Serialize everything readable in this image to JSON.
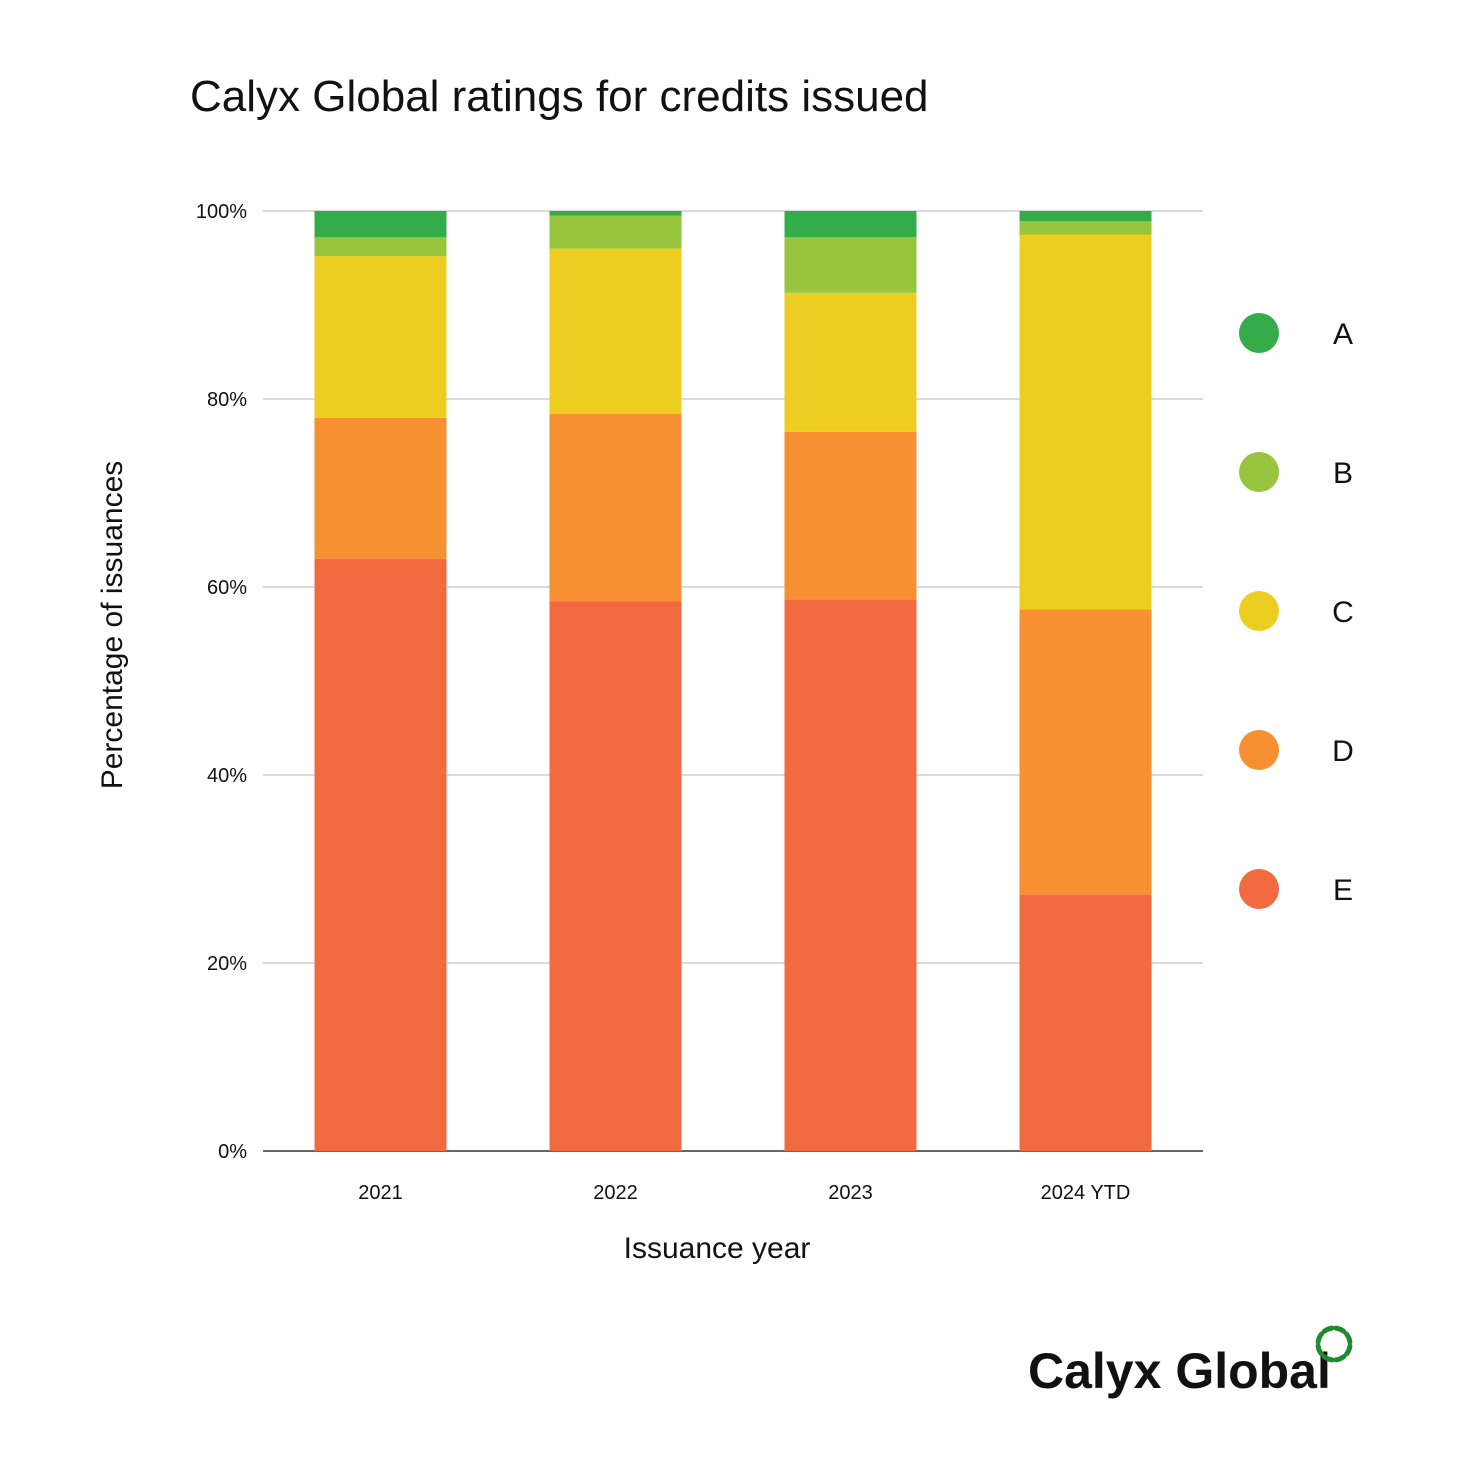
{
  "chart_data": {
    "type": "bar",
    "stacked": true,
    "title": "Calyx Global ratings for credits issued",
    "xlabel": "Issuance year",
    "ylabel": "Percentage of issuances",
    "ylim": [
      0,
      100
    ],
    "yticks": [
      {
        "value": 0,
        "label": "0%"
      },
      {
        "value": 20,
        "label": "20%"
      },
      {
        "value": 40,
        "label": "40%"
      },
      {
        "value": 60,
        "label": "60%"
      },
      {
        "value": 80,
        "label": "80%"
      },
      {
        "value": 100,
        "label": "100%"
      }
    ],
    "grid": true,
    "legend_position": "right",
    "categories": [
      "2021",
      "2022",
      "2023",
      "2024 YTD"
    ],
    "series": [
      {
        "name": "E",
        "color": "#F26B40",
        "values": [
          63.0,
          58.5,
          58.7,
          27.3
        ]
      },
      {
        "name": "D",
        "color": "#F69030",
        "values": [
          15.0,
          19.9,
          17.8,
          30.3
        ]
      },
      {
        "name": "C",
        "color": "#EDCD1F",
        "values": [
          17.2,
          17.6,
          14.8,
          39.9
        ]
      },
      {
        "name": "B",
        "color": "#97C53E",
        "values": [
          2.0,
          3.5,
          5.9,
          1.4
        ]
      },
      {
        "name": "A",
        "color": "#34AC4A",
        "values": [
          2.8,
          0.5,
          2.8,
          1.1
        ]
      }
    ]
  },
  "legend_order": [
    "A",
    "B",
    "C",
    "D",
    "E"
  ],
  "brand": {
    "logo_text": "Calyx Global",
    "logo_color": "#1E8C2E"
  }
}
